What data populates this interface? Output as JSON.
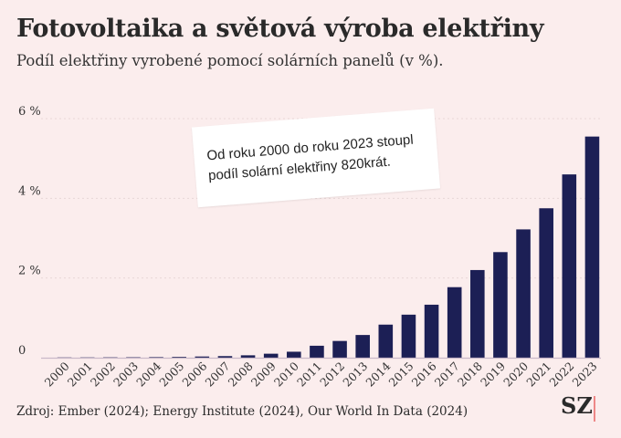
{
  "header": {
    "title": "Fotovoltaika a světová výroba elektřiny",
    "subtitle": "Podíl elektřiny vyrobené pomocí solárních panelů (v %)."
  },
  "annotation": {
    "line1": "Od roku 2000 do roku 2023 stoupl",
    "line2": "podíl solární elektřiny 820krát."
  },
  "footer": {
    "source": "Zdroj: Ember (2024); Energy Institute (2024), Our World In Data (2024)",
    "logo": "SZ"
  },
  "colors": {
    "bar": "#1c1f55",
    "background": "#fbeded",
    "grid": "#e8d6d6",
    "logo_accent": "#ee8888"
  },
  "chart_data": {
    "type": "bar",
    "title": "Fotovoltaika a světová výroba elektřiny",
    "subtitle": "Podíl elektřiny vyrobené pomocí solárních panelů (v %).",
    "xlabel": "",
    "ylabel": "",
    "categories": [
      "2000",
      "2001",
      "2002",
      "2003",
      "2004",
      "2005",
      "2006",
      "2007",
      "2008",
      "2009",
      "2010",
      "2011",
      "2012",
      "2013",
      "2014",
      "2015",
      "2016",
      "2017",
      "2018",
      "2019",
      "2020",
      "2021",
      "2022",
      "2023"
    ],
    "values": [
      0.007,
      0.008,
      0.01,
      0.012,
      0.015,
      0.02,
      0.03,
      0.04,
      0.06,
      0.1,
      0.15,
      0.3,
      0.42,
      0.57,
      0.83,
      1.08,
      1.33,
      1.77,
      2.2,
      2.65,
      3.22,
      3.75,
      4.6,
      5.55
    ],
    "yticks": [
      0,
      2,
      4,
      6
    ],
    "ytick_labels": [
      "0",
      "2 %",
      "4 %",
      "6 %"
    ],
    "ylim": [
      0,
      6
    ],
    "grid": true
  }
}
